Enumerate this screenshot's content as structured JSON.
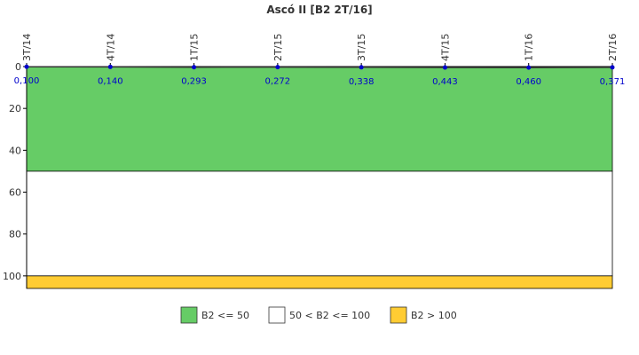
{
  "chart_data": {
    "type": "line",
    "title": "Ascó II [B2 2T/16]",
    "xlabel": "",
    "ylabel": "",
    "y_axis_inverted": true,
    "ylim": [
      0,
      106
    ],
    "yticks": [
      0,
      20,
      40,
      60,
      80,
      100
    ],
    "categories": [
      "3T/14",
      "4T/14",
      "1T/15",
      "2T/15",
      "3T/15",
      "4T/15",
      "1T/16",
      "2T/16"
    ],
    "series": [
      {
        "values": [
          0.1,
          0.14,
          0.293,
          0.272,
          0.338,
          0.443,
          0.46,
          0.371
        ],
        "labels": [
          "0,100",
          "0,140",
          "0,293",
          "0,272",
          "0,338",
          "0,443",
          "0,460",
          "0,371"
        ],
        "color": "#333333",
        "marker_color": "#0000cc"
      }
    ],
    "bands": [
      {
        "from": 0,
        "to": 50,
        "color": "#66cc66",
        "legend": "B2 <= 50"
      },
      {
        "from": 50,
        "to": 100,
        "color": "#ffffff",
        "legend": "50 < B2 <= 100"
      },
      {
        "from": 100,
        "to": 106,
        "color": "#ffcc33",
        "legend": "B2 > 100"
      }
    ],
    "legend_position": "bottom"
  }
}
